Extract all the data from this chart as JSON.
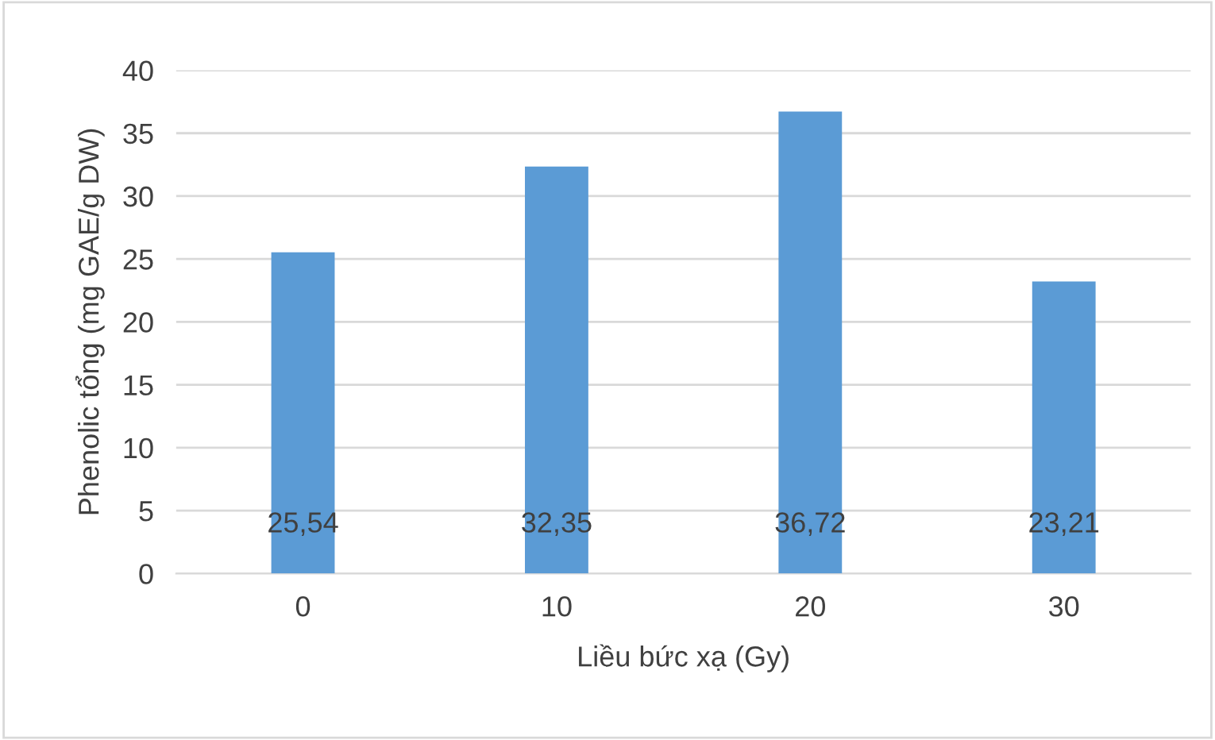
{
  "chart_data": {
    "type": "bar",
    "xlabel": "Liều bức xạ (Gy)",
    "ylabel": "Phenolic tổng (mg GAE/g DW)",
    "categories": [
      "0",
      "10",
      "20",
      "30"
    ],
    "values": [
      25.54,
      32.35,
      36.72,
      23.21
    ],
    "value_labels": [
      "25,54",
      "32,35",
      "36,72",
      "23,21"
    ],
    "color": "#5b9bd5",
    "ylim": [
      0,
      40
    ],
    "yticks": [
      0,
      5,
      10,
      15,
      20,
      25,
      30,
      35,
      40
    ],
    "grid": "y",
    "legend": false
  }
}
